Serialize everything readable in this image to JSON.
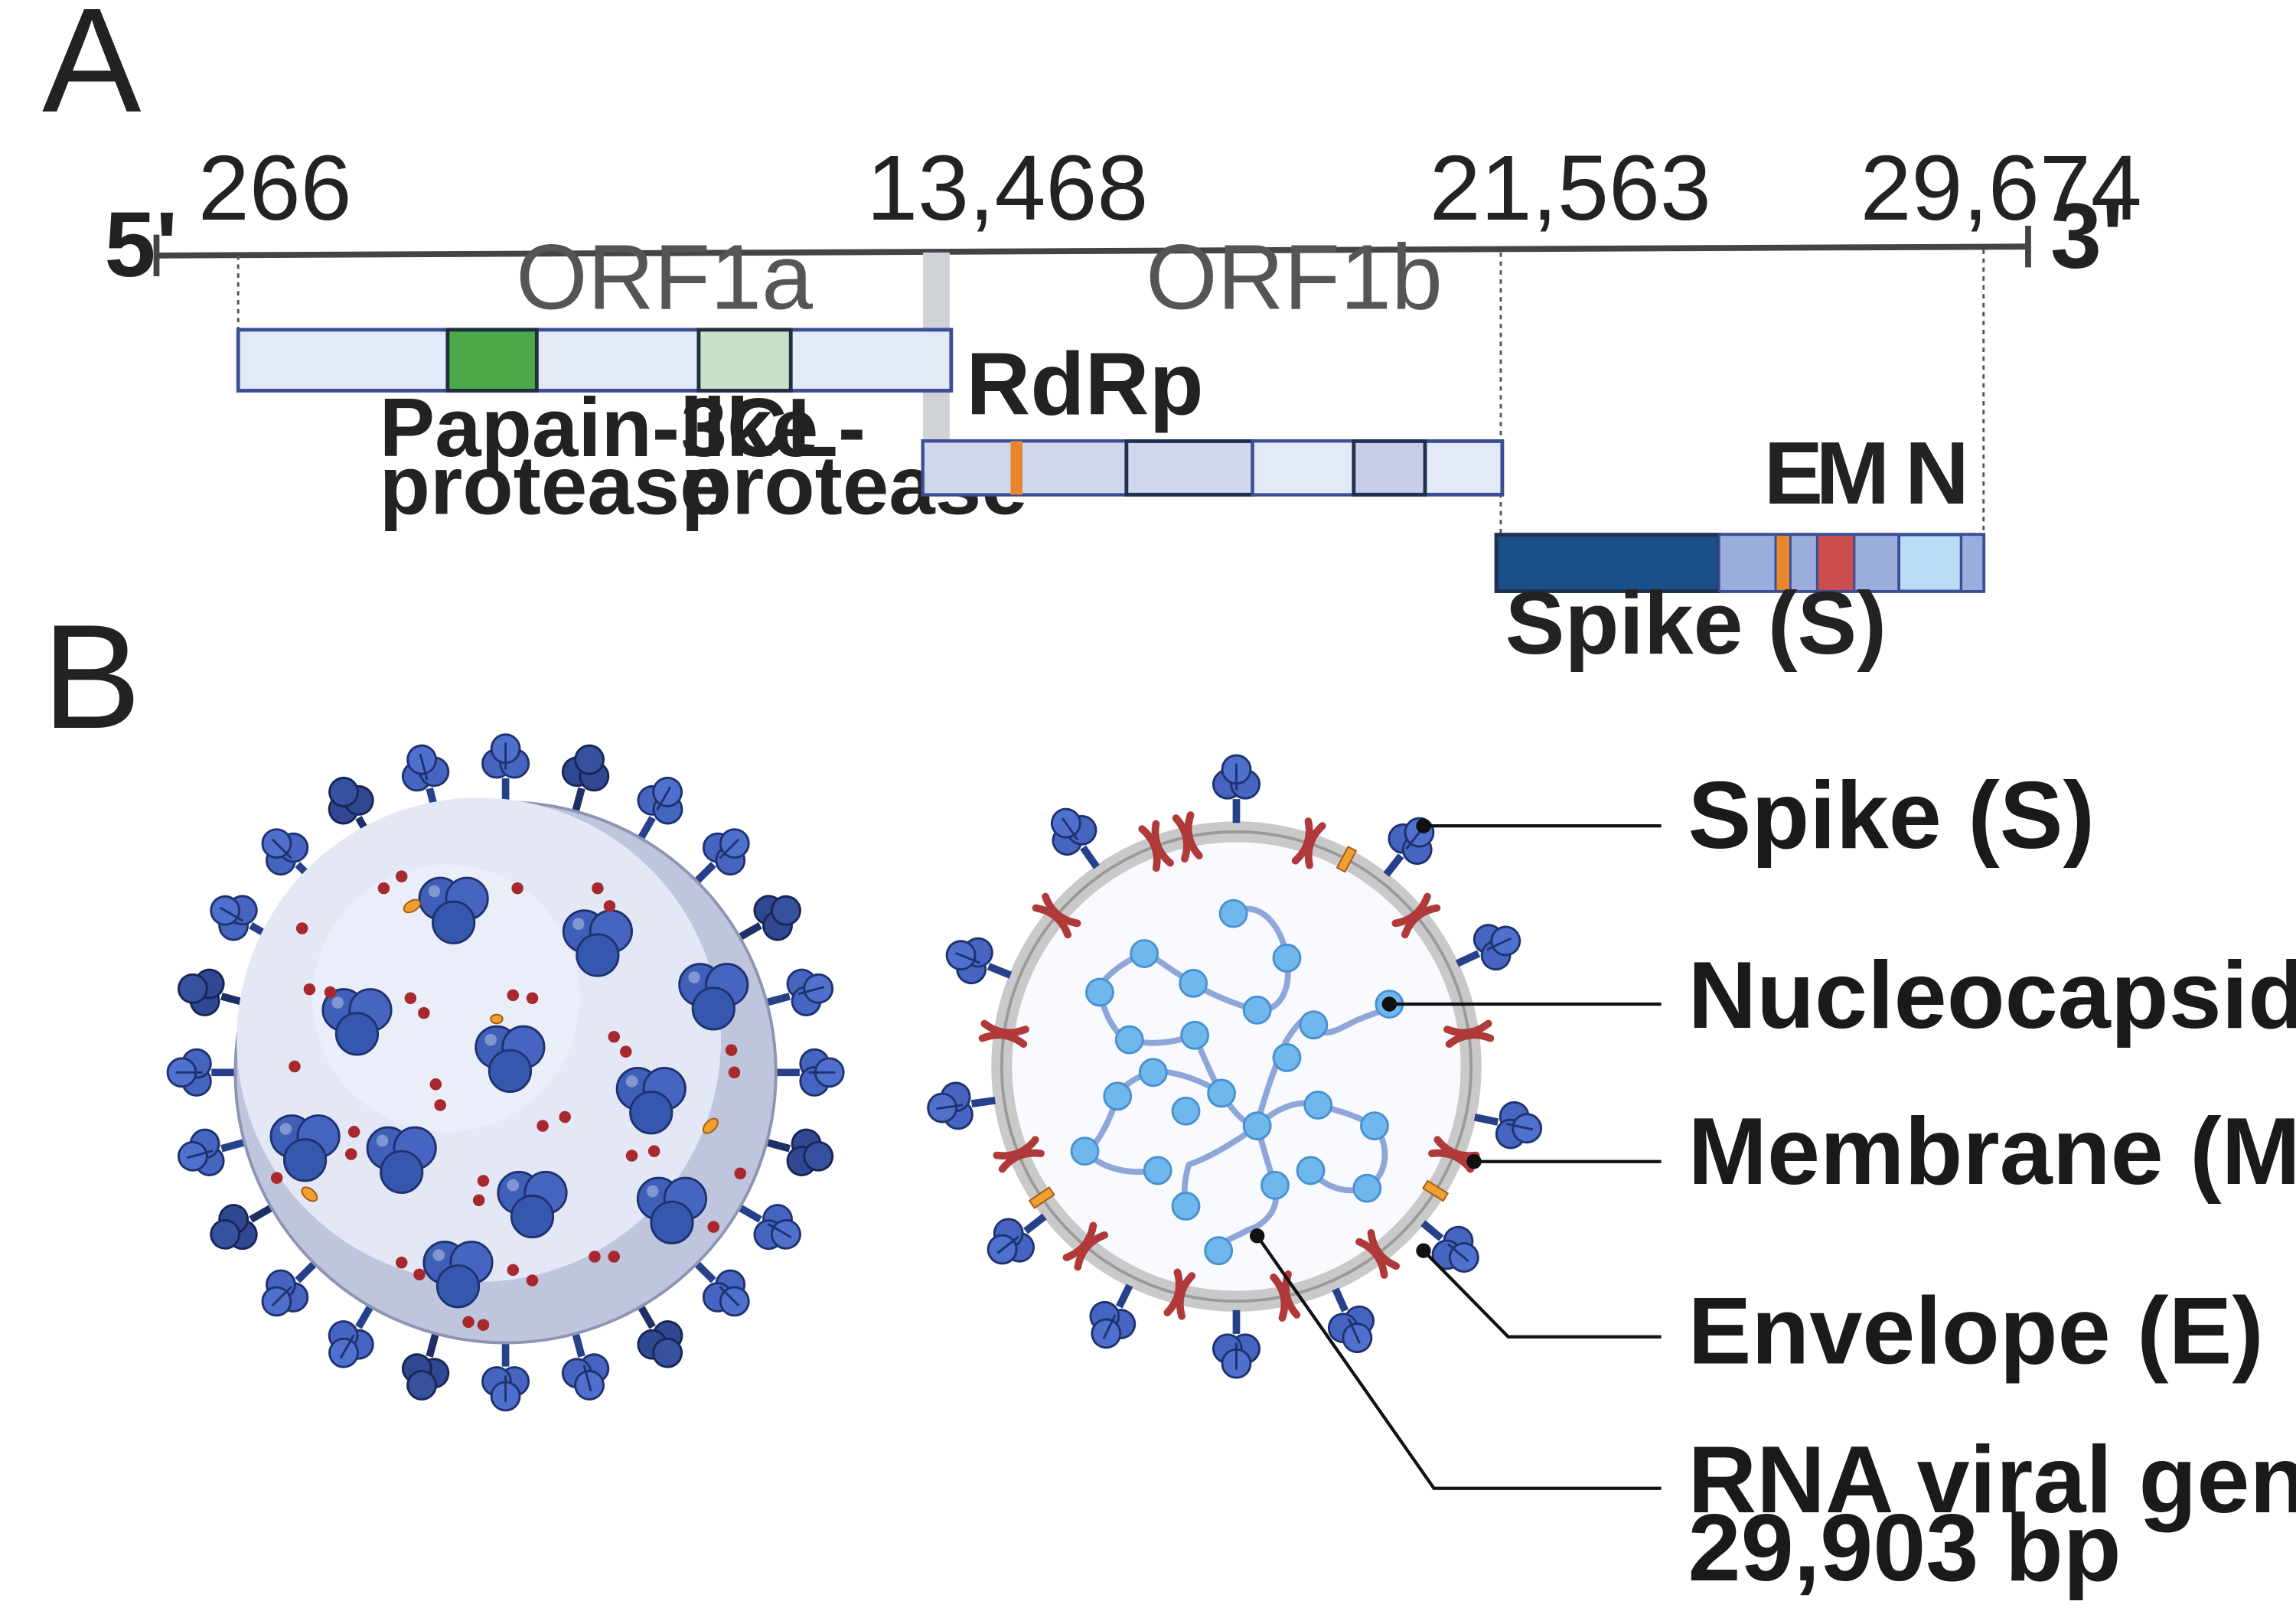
{
  "panels": {
    "a": "A",
    "b": "B"
  },
  "genome": {
    "five_prime": "5'",
    "three_prime": "3'",
    "coords": [
      "266",
      "13,468",
      "21,563",
      "29,674"
    ],
    "orf1a": "ORF1a",
    "orf1b": "ORF1b",
    "papain_line1": "Papain-like",
    "papain_line2": "protease",
    "cl3_line1": "3CL-",
    "cl3_line2": "protease",
    "rdrp": "RdRp",
    "spike": "Spike (S)",
    "e": "E",
    "m": "M",
    "n": "N"
  },
  "legend": {
    "spike": "Spike (S)",
    "nucleocapsid": "Nucleocapsid (N)",
    "membrane": "Membrane (M)",
    "envelope": "Envelope (E)",
    "rna_line1": "RNA viral genome",
    "rna_line2": "29,903 bp"
  },
  "colors": {
    "axis": "#444444",
    "orf_fill": "#e4e9f8",
    "orf_stroke": "#3b4e95",
    "papain": "#4da84a",
    "cl3": "#c8dfc8",
    "rdrp_mark": "#e8862c",
    "spike_gene": "#1a4f87",
    "m_gene": "#cc4d4d",
    "n_gene": "#bcdcf5",
    "spike_protein": "#3f5fb8",
    "membrane_protein": "#b03a3a",
    "envelope_protein": "#f0a030",
    "nucleocapsid": "#6eb8ee",
    "rna": "#8ea6d8"
  }
}
